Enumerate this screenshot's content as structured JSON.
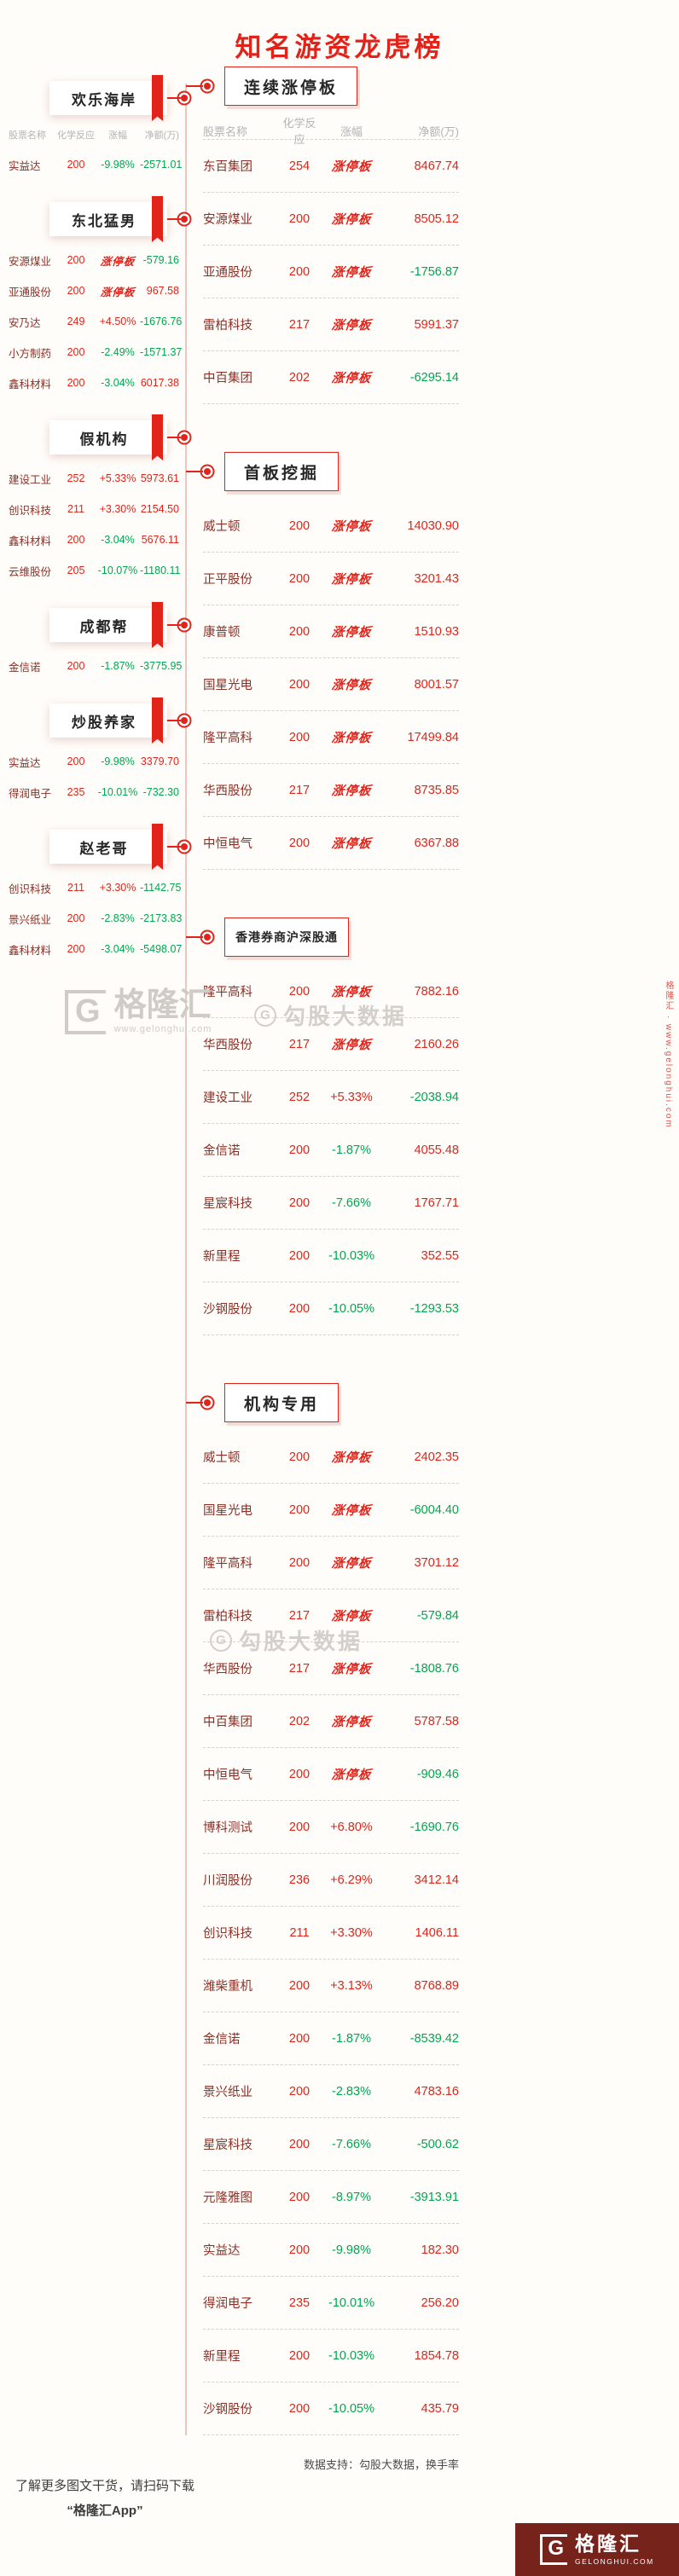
{
  "page": {
    "title": "知名游资龙虎榜"
  },
  "table": {
    "columns": [
      "股票名称",
      "化学反应",
      "涨幅",
      "净额(万)"
    ],
    "limit_up_label": "涨停板"
  },
  "colors": {
    "up_red": "#e2231a",
    "down_green": "#00a650",
    "name_maroon": "#8c2f26"
  },
  "chart_data": {
    "type": "table",
    "title": "知名游资龙虎榜",
    "columns": [
      "股票名称",
      "化学反应",
      "涨幅",
      "净额(万)"
    ],
    "left_sections": [
      {
        "title": "欢乐海岸",
        "rows": [
          [
            "实益达",
            "200",
            "-9.98%",
            "-2571.01"
          ]
        ]
      },
      {
        "title": "东北猛男",
        "rows": [
          [
            "安源煤业",
            "200",
            "涨停板",
            "-579.16"
          ],
          [
            "亚通股份",
            "200",
            "涨停板",
            "967.58"
          ],
          [
            "安乃达",
            "249",
            "+4.50%",
            "-1676.76"
          ],
          [
            "小方制药",
            "200",
            "-2.49%",
            "-1571.37"
          ],
          [
            "鑫科材料",
            "200",
            "-3.04%",
            "6017.38"
          ]
        ]
      },
      {
        "title": "假机构",
        "rows": [
          [
            "建设工业",
            "252",
            "+5.33%",
            "5973.61"
          ],
          [
            "创识科技",
            "211",
            "+3.30%",
            "2154.50"
          ],
          [
            "鑫科材料",
            "200",
            "-3.04%",
            "5676.11"
          ],
          [
            "云维股份",
            "205",
            "-10.07%",
            "-1180.11"
          ]
        ]
      },
      {
        "title": "成都帮",
        "rows": [
          [
            "金信诺",
            "200",
            "-1.87%",
            "-3775.95"
          ]
        ]
      },
      {
        "title": "炒股养家",
        "rows": [
          [
            "实益达",
            "200",
            "-9.98%",
            "3379.70"
          ],
          [
            "得润电子",
            "235",
            "-10.01%",
            "-732.30"
          ]
        ]
      },
      {
        "title": "赵老哥",
        "rows": [
          [
            "创识科技",
            "211",
            "+3.30%",
            "-1142.75"
          ],
          [
            "景兴纸业",
            "200",
            "-2.83%",
            "-2173.83"
          ],
          [
            "鑫科材料",
            "200",
            "-3.04%",
            "-5498.07"
          ]
        ]
      }
    ],
    "right_sections": [
      {
        "title": "连续涨停板",
        "rows": [
          [
            "东百集团",
            "254",
            "涨停板",
            "8467.74"
          ],
          [
            "安源煤业",
            "200",
            "涨停板",
            "8505.12"
          ],
          [
            "亚通股份",
            "200",
            "涨停板",
            "-1756.87"
          ],
          [
            "雷柏科技",
            "217",
            "涨停板",
            "5991.37"
          ],
          [
            "中百集团",
            "202",
            "涨停板",
            "-6295.14"
          ]
        ]
      },
      {
        "title": "首板挖掘",
        "rows": [
          [
            "威士顿",
            "200",
            "涨停板",
            "14030.90"
          ],
          [
            "正平股份",
            "200",
            "涨停板",
            "3201.43"
          ],
          [
            "康普顿",
            "200",
            "涨停板",
            "1510.93"
          ],
          [
            "国星光电",
            "200",
            "涨停板",
            "8001.57"
          ],
          [
            "隆平高科",
            "200",
            "涨停板",
            "17499.84"
          ],
          [
            "华西股份",
            "217",
            "涨停板",
            "8735.85"
          ],
          [
            "中恒电气",
            "200",
            "涨停板",
            "6367.88"
          ]
        ]
      },
      {
        "title": "香港券商沪深股通",
        "rows": [
          [
            "隆平高科",
            "200",
            "涨停板",
            "7882.16"
          ],
          [
            "华西股份",
            "217",
            "涨停板",
            "2160.26"
          ],
          [
            "建设工业",
            "252",
            "+5.33%",
            "-2038.94"
          ],
          [
            "金信诺",
            "200",
            "-1.87%",
            "4055.48"
          ],
          [
            "星宸科技",
            "200",
            "-7.66%",
            "1767.71"
          ],
          [
            "新里程",
            "200",
            "-10.03%",
            "352.55"
          ],
          [
            "沙钢股份",
            "200",
            "-10.05%",
            "-1293.53"
          ]
        ]
      },
      {
        "title": "机构专用",
        "rows": [
          [
            "威士顿",
            "200",
            "涨停板",
            "2402.35"
          ],
          [
            "国星光电",
            "200",
            "涨停板",
            "-6004.40"
          ],
          [
            "隆平高科",
            "200",
            "涨停板",
            "3701.12"
          ],
          [
            "雷柏科技",
            "217",
            "涨停板",
            "-579.84"
          ],
          [
            "华西股份",
            "217",
            "涨停板",
            "-1808.76"
          ],
          [
            "中百集团",
            "202",
            "涨停板",
            "5787.58"
          ],
          [
            "中恒电气",
            "200",
            "涨停板",
            "-909.46"
          ],
          [
            "博科测试",
            "200",
            "+6.80%",
            "-1690.76"
          ],
          [
            "川润股份",
            "236",
            "+6.29%",
            "3412.14"
          ],
          [
            "创识科技",
            "211",
            "+3.30%",
            "1406.11"
          ],
          [
            "潍柴重机",
            "200",
            "+3.13%",
            "8768.89"
          ],
          [
            "金信诺",
            "200",
            "-1.87%",
            "-8539.42"
          ],
          [
            "景兴纸业",
            "200",
            "-2.83%",
            "4783.16"
          ],
          [
            "星宸科技",
            "200",
            "-7.66%",
            "-500.62"
          ],
          [
            "元隆雅图",
            "200",
            "-8.97%",
            "-3913.91"
          ],
          [
            "实益达",
            "200",
            "-9.98%",
            "182.30"
          ],
          [
            "得润电子",
            "235",
            "-10.01%",
            "256.20"
          ],
          [
            "新里程",
            "200",
            "-10.03%",
            "1854.78"
          ],
          [
            "沙钢股份",
            "200",
            "-10.05%",
            "435.79"
          ]
        ]
      }
    ]
  },
  "watermarks": {
    "gelonghui": {
      "icon": "G",
      "text": "格隆汇",
      "sub": "www.gelonghui.com"
    },
    "gougu_1": {
      "icon": "G",
      "text": "勾股大数据"
    },
    "gougu_2": {
      "icon": "G",
      "text": "勾股大数据"
    },
    "side_vertical": "格隆汇 · www.gelonghui.com"
  },
  "footer": {
    "data_support": "数据支持：勾股大数据，换手率",
    "promo_line1": "了解更多图文干货，请扫码下载",
    "promo_line2": "“格隆汇App”",
    "brand_icon": "G",
    "brand": "格隆汇",
    "brand_sub": "GELONGHUI.COM"
  }
}
